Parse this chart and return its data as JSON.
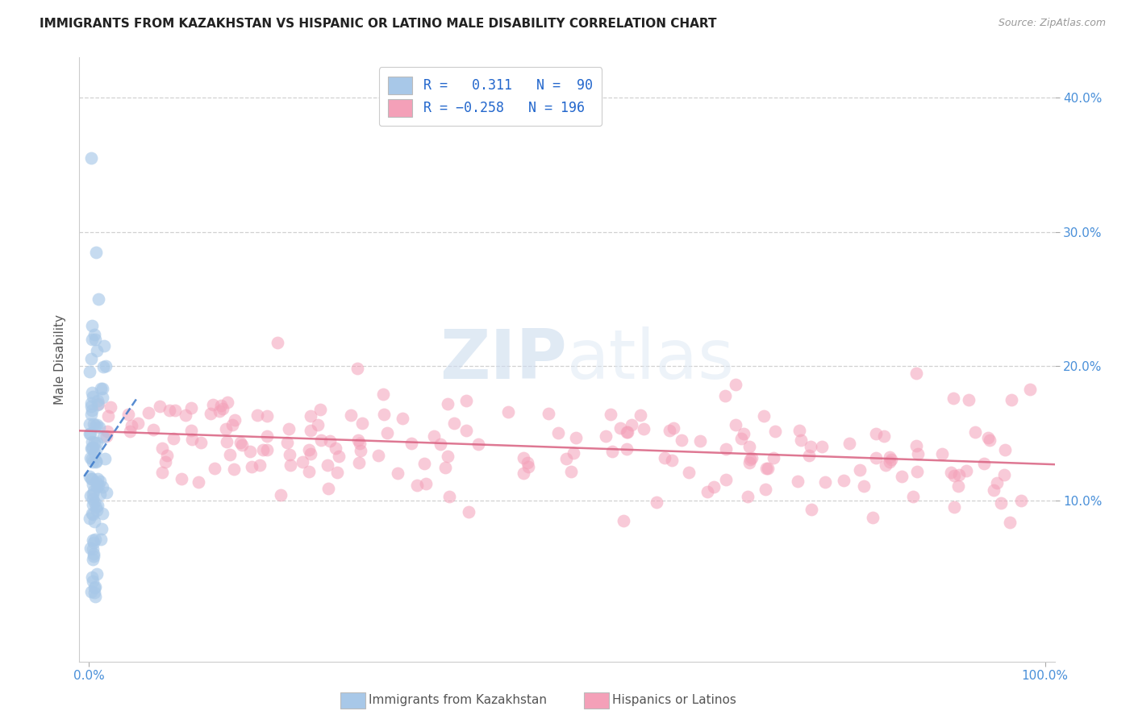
{
  "title": "IMMIGRANTS FROM KAZAKHSTAN VS HISPANIC OR LATINO MALE DISABILITY CORRELATION CHART",
  "source": "Source: ZipAtlas.com",
  "ylabel": "Male Disability",
  "r_blue": 0.311,
  "n_blue": 90,
  "r_pink": -0.258,
  "n_pink": 196,
  "blue_color": "#a8c8e8",
  "blue_line_color": "#3a78c9",
  "pink_color": "#f4a0b8",
  "pink_line_color": "#d96080",
  "legend_label_blue": "Immigrants from Kazakhstan",
  "legend_label_pink": "Hispanics or Latinos",
  "watermark_zip": "ZIP",
  "watermark_atlas": "atlas",
  "background_color": "#ffffff",
  "xlim": [
    -0.01,
    1.01
  ],
  "ylim": [
    -0.02,
    0.43
  ]
}
